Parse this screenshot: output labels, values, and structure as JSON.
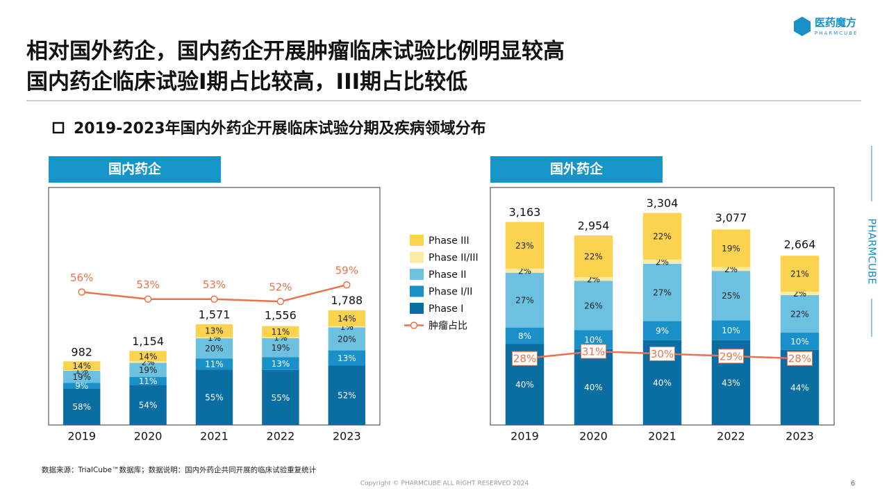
{
  "title": [
    "相对国外药企，国内药企开展肿瘤临床试验比例明显较高",
    "国内药企临床试验I期占比较高，III期占比较低"
  ],
  "subtitle": "2019-2023年国内外药企开展临床试验分期及疾病领域分布",
  "logo": {
    "name": "医药魔方",
    "sub": "PHARMCUBE"
  },
  "side_brand": "PHARMCUBE",
  "source": "数据来源：TrialCube™数据库；数据说明：国内外药企共同开展的临床试验重复统计",
  "copyright": "Copyright © PHARMCUBE ALL RIGHT RESERVED 2024",
  "page": "6",
  "chart_data": [
    {
      "type": "bar",
      "stacked": true,
      "panel": "国内药企",
      "categories": [
        "2019",
        "2020",
        "2021",
        "2022",
        "2023"
      ],
      "ylim": [
        0,
        3700
      ],
      "y2lim": [
        0,
        100
      ],
      "totals": {
        "values": [
          982,
          1154,
          1571,
          1556,
          1788
        ],
        "value_labels": [
          "982",
          "1,154",
          "1,571",
          "1,556",
          "1,788"
        ]
      },
      "series": [
        {
          "name": "Phase I",
          "color": "#0b6ea3",
          "values": [
            58,
            54,
            55,
            55,
            52
          ],
          "value_labels": [
            "58%",
            "54%",
            "55%",
            "55%",
            "52%"
          ]
        },
        {
          "name": "Phase I/II",
          "color": "#1a90c9",
          "values": [
            9,
            11,
            11,
            13,
            13
          ],
          "value_labels": [
            "9%",
            "11%",
            "11%",
            "13%",
            "13%"
          ]
        },
        {
          "name": "Phase II",
          "color": "#6cc0e0",
          "values": [
            19,
            19,
            20,
            19,
            20
          ],
          "value_labels": [
            "19%",
            "19%",
            "20%",
            "19%",
            "20%"
          ]
        },
        {
          "name": "Phase II/III",
          "color": "#fdeaa2",
          "values": [
            1,
            2,
            1,
            1,
            1
          ],
          "value_labels": [
            "1%",
            "2%",
            "1%",
            "1%",
            "1%"
          ]
        },
        {
          "name": "Phase III",
          "color": "#fbd34f",
          "values": [
            14,
            14,
            13,
            11,
            14
          ],
          "value_labels": [
            "14%",
            "14%",
            "13%",
            "11%",
            "14%"
          ]
        },
        {
          "name": "肿瘤占比",
          "type": "line",
          "axis": "y2",
          "color": "#e8734a",
          "values": [
            56,
            53,
            53,
            52,
            59
          ],
          "value_labels": [
            "56%",
            "53%",
            "53%",
            "52%",
            "59%"
          ]
        }
      ]
    },
    {
      "type": "bar",
      "stacked": true,
      "panel": "国外药企",
      "categories": [
        "2019",
        "2020",
        "2021",
        "2022",
        "2023"
      ],
      "ylim": [
        0,
        3700
      ],
      "y2lim": [
        0,
        100
      ],
      "totals": {
        "values": [
          3163,
          2954,
          3304,
          3077,
          2664
        ],
        "value_labels": [
          "3,163",
          "2,954",
          "3,304",
          "3,077",
          "2,664"
        ]
      },
      "series": [
        {
          "color": "#0b6ea3",
          "values": [
            40,
            40,
            40,
            43,
            44
          ],
          "value_labels": [
            "40%",
            "40%",
            "40%",
            "43%",
            "44%"
          ]
        },
        {
          "color": "#1a90c9",
          "values": [
            8,
            10,
            9,
            10,
            10
          ],
          "value_labels": [
            "8%",
            "10%",
            "9%",
            "10%",
            "10%"
          ]
        },
        {
          "color": "#6cc0e0",
          "values": [
            27,
            26,
            27,
            25,
            22
          ],
          "value_labels": [
            "27%",
            "26%",
            "27%",
            "25%",
            "22%"
          ]
        },
        {
          "color": "#fdeaa2",
          "values": [
            2,
            2,
            2,
            2,
            2
          ],
          "value_labels": [
            "2%",
            "2%",
            "2%",
            "2%",
            "2%"
          ]
        },
        {
          "color": "#fbd34f",
          "values": [
            23,
            22,
            22,
            19,
            21
          ],
          "value_labels": [
            "23%",
            "22%",
            "22%",
            "19%",
            "21%"
          ]
        },
        {
          "type": "line",
          "axis": "y2",
          "color": "#e8734a",
          "values": [
            28,
            31,
            30,
            29,
            28
          ],
          "value_labels": [
            "28%",
            "31%",
            "30%",
            "29%",
            "28%"
          ]
        }
      ]
    }
  ]
}
